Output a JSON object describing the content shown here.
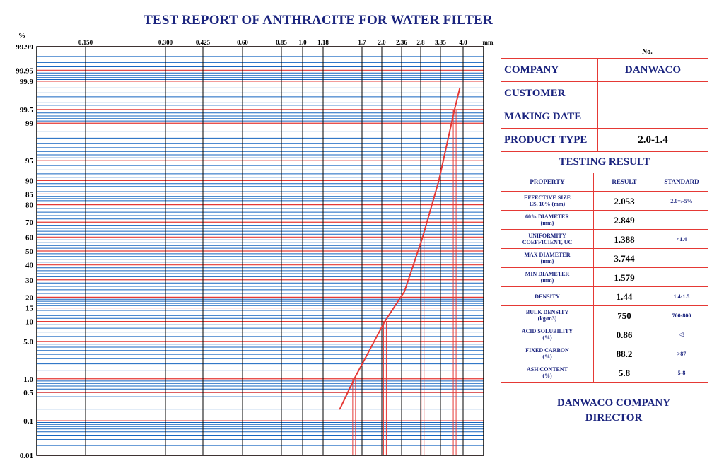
{
  "title": "TEST REPORT OF ANTHRACITE FOR WATER FILTER",
  "doc_no": "No.-------------------",
  "info": [
    {
      "label": "COMPANY",
      "value": "DANWACO"
    },
    {
      "label": "CUSTOMER",
      "value": ""
    },
    {
      "label": "MAKING DATE",
      "value": ""
    },
    {
      "label": "PRODUCT TYPE",
      "value": "2.0-1.4"
    }
  ],
  "testing_title": "TESTING RESULT",
  "results_header": {
    "property": "PROPERTY",
    "result": "RESULT",
    "standard": "STANDARD"
  },
  "results": [
    {
      "property": "EFFECTIVE SIZE",
      "property_sub": "ES, 10% (mm)",
      "result": "2.053",
      "standard": "2.0+/-5%"
    },
    {
      "property": "60% DIAMETER",
      "property_sub": "(mm)",
      "result": "2.849",
      "standard": ""
    },
    {
      "property": "UNIFORMITY",
      "property_sub": "COEFFICIENT, UC",
      "result": "1.388",
      "standard": "<1.4"
    },
    {
      "property": "MAX DIAMETER",
      "property_sub": "(mm)",
      "result": "3.744",
      "standard": ""
    },
    {
      "property": "MIN DIAMETER",
      "property_sub": "(mm)",
      "result": "1.579",
      "standard": ""
    },
    {
      "property": "DENSITY",
      "property_sub": "",
      "result": "1.44",
      "standard": "1.4-1.5"
    },
    {
      "property": "BULK DENSITY",
      "property_sub": "(kg/m3)",
      "result": "750",
      "standard": "700-800"
    },
    {
      "property": "ACID SOLUBILITY",
      "property_sub": "(%)",
      "result": "0.86",
      "standard": "<3"
    },
    {
      "property": "FIXED CARBON",
      "property_sub": "(%)",
      "result": "88.2",
      "standard": ">87"
    },
    {
      "property": "ASH CONTENT",
      "property_sub": "(%)",
      "result": "5.8",
      "standard": "5-8"
    }
  ],
  "signature": {
    "line1": "DANWACO COMPANY",
    "line2": "DIRECTOR"
  },
  "chart_data": {
    "type": "line",
    "x_unit": "mm",
    "y_unit": "%",
    "x_ticks": [
      "0.150",
      "0.300",
      "0.425",
      "0.60",
      "0.85",
      "1.0",
      "1.18",
      "1.7",
      "2.0",
      "2.36",
      "2.8",
      "3.35",
      "4.0"
    ],
    "x_tick_values": [
      0.15,
      0.3,
      0.425,
      0.6,
      0.85,
      1.0,
      1.18,
      1.7,
      2.0,
      2.36,
      2.8,
      3.35,
      4.0
    ],
    "y_ticks": [
      "99.99",
      "99.95",
      "99.9",
      "99.5",
      "99",
      "95",
      "90",
      "85",
      "80",
      "70",
      "60",
      "50",
      "40",
      "30",
      "20",
      "15",
      "10",
      "5.0",
      "1.0",
      "0.5",
      "0.1",
      "0.01"
    ],
    "y_tick_values": [
      99.99,
      99.95,
      99.9,
      99.5,
      99,
      95,
      90,
      85,
      80,
      70,
      60,
      50,
      40,
      30,
      20,
      15,
      10,
      5,
      1,
      0.5,
      0.1,
      0.01
    ],
    "ylim": [
      0.01,
      99.99
    ],
    "grid": true,
    "series": [
      {
        "color": "#e53935",
        "points": [
          {
            "x": 1.38,
            "y": 0.2
          },
          {
            "x": 1.58,
            "y": 1.0
          },
          {
            "x": 1.72,
            "y": 2.2
          },
          {
            "x": 2.05,
            "y": 10
          },
          {
            "x": 2.42,
            "y": 23
          },
          {
            "x": 2.85,
            "y": 60
          },
          {
            "x": 3.3,
            "y": 90
          },
          {
            "x": 3.74,
            "y": 99.5
          },
          {
            "x": 3.9,
            "y": 99.85
          }
        ]
      }
    ],
    "markers": [
      {
        "x": 1.579,
        "y": 1.0
      },
      {
        "x": 2.053,
        "y": 10
      },
      {
        "x": 2.849,
        "y": 60
      },
      {
        "x": 3.744,
        "y": 99.5
      }
    ]
  }
}
